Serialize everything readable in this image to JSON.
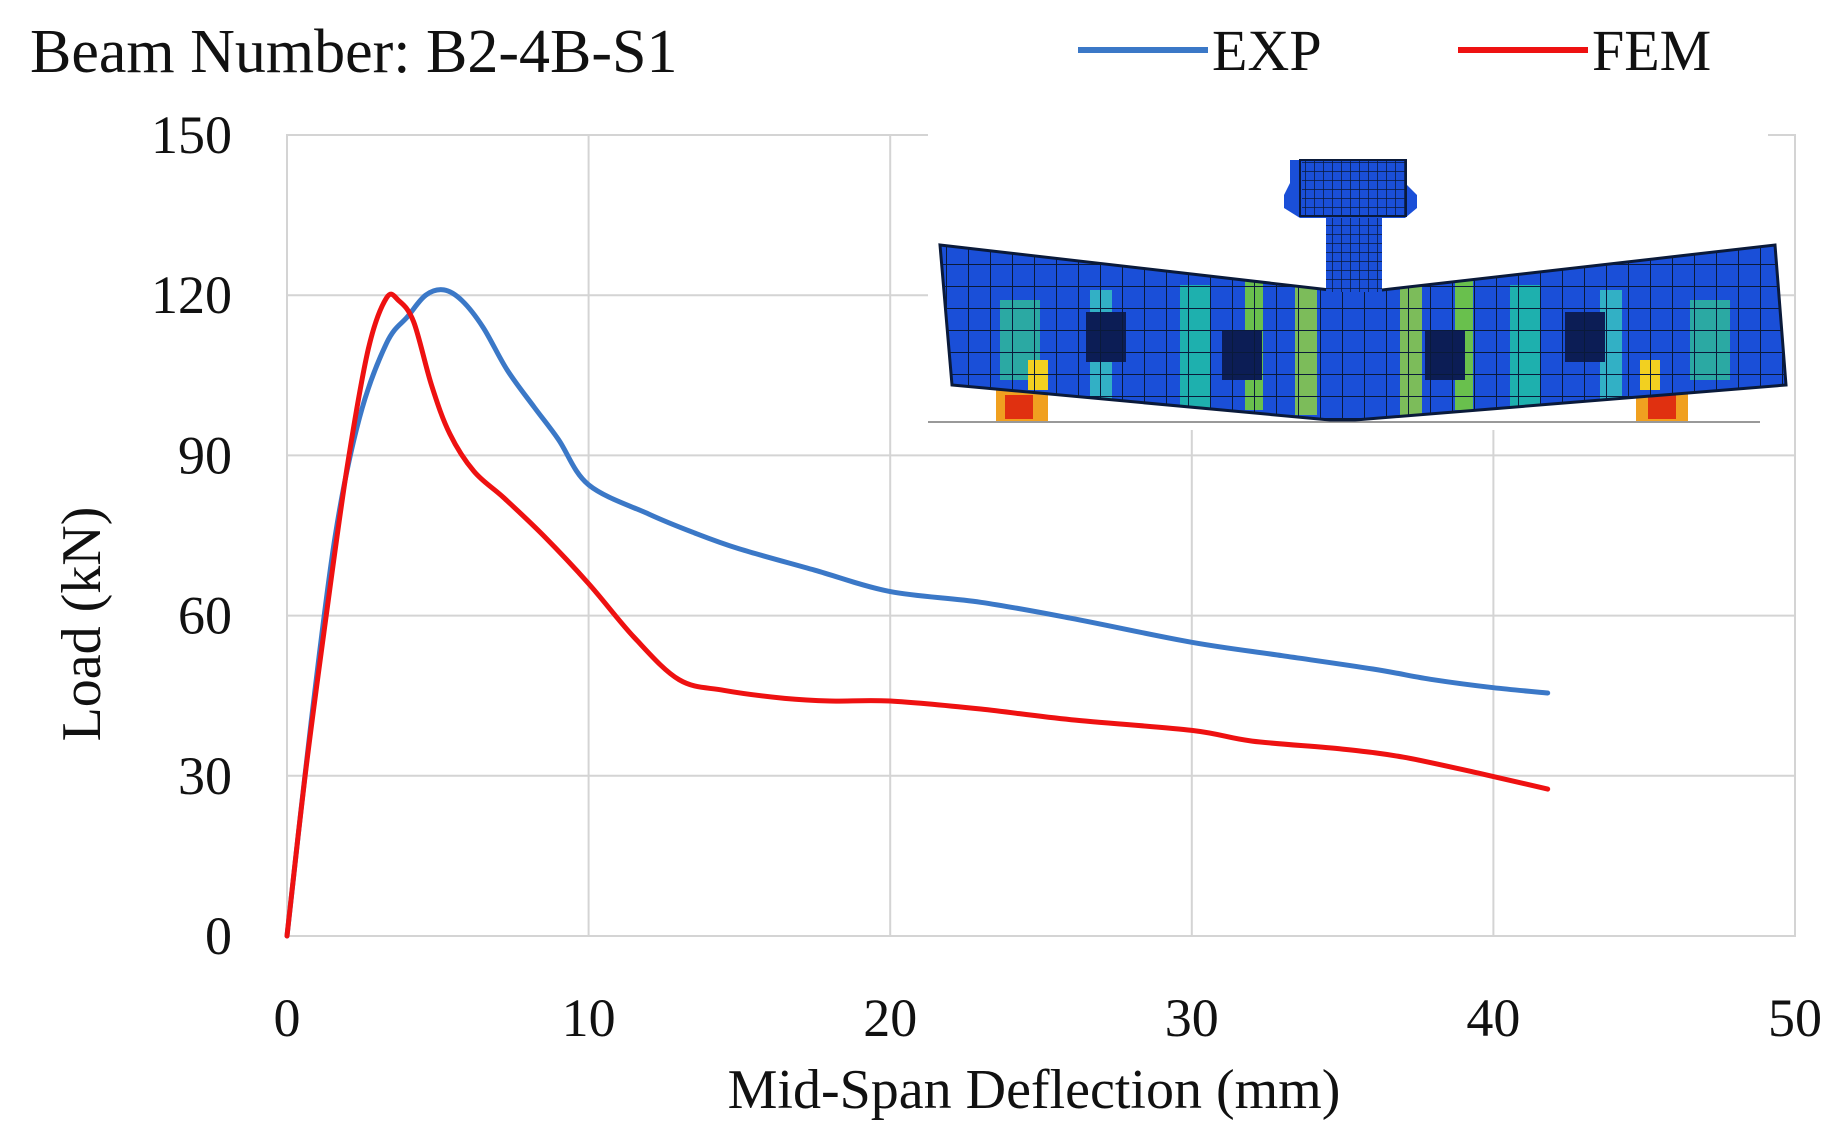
{
  "chart_data": {
    "type": "line",
    "title": "Beam Number: B2-4B-S1",
    "xlabel": "Mid-Span Deflection (mm)",
    "ylabel": "Load (kN)",
    "xlim": [
      0,
      50
    ],
    "ylim": [
      0,
      150
    ],
    "xticks": [
      0,
      10,
      20,
      30,
      40,
      50
    ],
    "yticks": [
      0,
      30,
      60,
      90,
      120,
      150
    ],
    "grid": true,
    "legend_position": "top-right",
    "series": [
      {
        "name": "EXP",
        "color": "#3b78c7",
        "x": [
          0,
          0.8,
          1.6,
          2.4,
          3.3,
          4.0,
          4.6,
          5.2,
          5.8,
          6.5,
          7.3,
          8.2,
          9.0,
          10.0,
          12.0,
          13.5,
          15.0,
          17.5,
          20.0,
          23.0,
          26.0,
          30.0,
          33.0,
          36.0,
          38.0,
          40.0,
          41.8
        ],
        "y": [
          0,
          40,
          75,
          97,
          111,
          116,
          120,
          121,
          119,
          114,
          106,
          99,
          93,
          84.5,
          79,
          75.5,
          72.5,
          68.5,
          64.5,
          62.5,
          59.5,
          55,
          52.5,
          50,
          48,
          46.5,
          45.5
        ]
      },
      {
        "name": "FEM",
        "color": "#ee1111",
        "x": [
          0,
          0.6,
          1.3,
          2.0,
          2.7,
          3.3,
          3.7,
          4.2,
          4.8,
          5.4,
          6.2,
          7.2,
          8.5,
          10.0,
          11.5,
          13.0,
          14.5,
          16.5,
          18.0,
          20.0,
          23.0,
          26.0,
          30.0,
          32.0,
          35.0,
          37.0,
          39.5,
          41.8
        ],
        "y": [
          0,
          30,
          60,
          88,
          110,
          119.5,
          119,
          115,
          103,
          94,
          87,
          82,
          75,
          66,
          56,
          48,
          46,
          44.5,
          44,
          44,
          42.5,
          40.5,
          38.5,
          36.5,
          35,
          33.5,
          30.5,
          27.5
        ]
      }
    ],
    "inset": {
      "description_visible": false,
      "kind": "finite-element-contour-image"
    }
  }
}
